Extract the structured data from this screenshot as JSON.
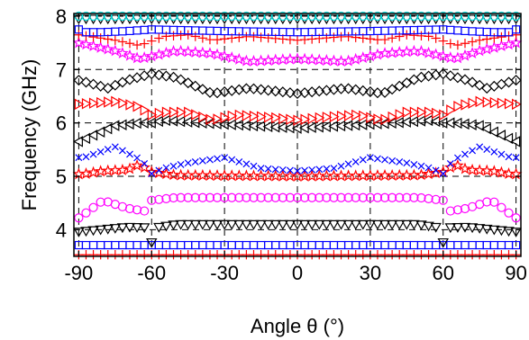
{
  "chart_data": {
    "type": "scatter",
    "xlabel": "Angle θ (°)",
    "ylabel": "Frequency (GHz)",
    "xlim": [
      -92,
      92
    ],
    "ylim": [
      3.5,
      8.05
    ],
    "x_ticks": [
      -90,
      -60,
      -30,
      0,
      30,
      60,
      90
    ],
    "y_ticks": [
      4,
      5,
      6,
      7,
      8
    ],
    "grid": "dashed",
    "legend": "none",
    "marker_step": 3,
    "series": [
      {
        "marker": "plus",
        "color": "#ff0000",
        "symmetric": true,
        "points": [
          [
            0,
            3.53
          ],
          [
            90,
            3.53
          ]
        ]
      },
      {
        "marker": "square",
        "color": "#0000ff",
        "symmetric": true,
        "points": [
          [
            0,
            3.71
          ],
          [
            90,
            3.71
          ]
        ]
      },
      {
        "marker": "triangle-down",
        "color": "#000000",
        "symmetric": true,
        "points": [
          [
            0,
            4.1
          ],
          [
            50,
            4.1
          ],
          [
            58,
            4.04
          ],
          [
            60,
            3.76
          ],
          [
            62,
            4.04
          ],
          [
            70,
            4.05
          ],
          [
            90,
            3.96
          ]
        ]
      },
      {
        "marker": "circle",
        "color": "#ff00ff",
        "symmetric": true,
        "points": [
          [
            0,
            4.6
          ],
          [
            50,
            4.6
          ],
          [
            60,
            4.55
          ],
          [
            63,
            4.35
          ],
          [
            70,
            4.4
          ],
          [
            80,
            4.55
          ],
          [
            88,
            4.28
          ],
          [
            90,
            4.22
          ]
        ]
      },
      {
        "marker": "star",
        "color": "#ff0000",
        "symmetric": true,
        "points": [
          [
            0,
            5.0
          ],
          [
            50,
            5.02
          ],
          [
            60,
            5.08
          ],
          [
            65,
            5.22
          ],
          [
            70,
            5.12
          ],
          [
            80,
            5.1
          ],
          [
            88,
            5.04
          ],
          [
            90,
            5.04
          ]
        ]
      },
      {
        "marker": "x",
        "color": "#0000ff",
        "symmetric": true,
        "points": [
          [
            0,
            5.1
          ],
          [
            15,
            5.15
          ],
          [
            30,
            5.35
          ],
          [
            45,
            5.25
          ],
          [
            55,
            5.15
          ],
          [
            60,
            5.05
          ],
          [
            64,
            5.3
          ],
          [
            75,
            5.55
          ],
          [
            88,
            5.35
          ],
          [
            90,
            5.35
          ]
        ]
      },
      {
        "marker": "triangle-left",
        "color": "#000000",
        "symmetric": true,
        "points": [
          [
            0,
            5.9
          ],
          [
            20,
            5.95
          ],
          [
            40,
            6.0
          ],
          [
            55,
            6.05
          ],
          [
            60,
            6.0
          ],
          [
            65,
            6.0
          ],
          [
            75,
            5.95
          ],
          [
            90,
            5.65
          ]
        ]
      },
      {
        "marker": "triangle-right",
        "color": "#ff0000",
        "symmetric": true,
        "points": [
          [
            0,
            6.05
          ],
          [
            10,
            6.1
          ],
          [
            25,
            6.15
          ],
          [
            35,
            6.05
          ],
          [
            45,
            6.2
          ],
          [
            55,
            6.2
          ],
          [
            60,
            6.15
          ],
          [
            65,
            6.3
          ],
          [
            75,
            6.4
          ],
          [
            90,
            6.35
          ]
        ]
      },
      {
        "marker": "diamond",
        "color": "#000000",
        "symmetric": true,
        "points": [
          [
            0,
            6.55
          ],
          [
            20,
            6.65
          ],
          [
            35,
            6.55
          ],
          [
            50,
            6.85
          ],
          [
            60,
            6.92
          ],
          [
            70,
            6.8
          ],
          [
            78,
            6.65
          ],
          [
            90,
            6.8
          ]
        ]
      },
      {
        "marker": "star",
        "color": "#ff00ff",
        "symmetric": true,
        "points": [
          [
            0,
            7.2
          ],
          [
            20,
            7.15
          ],
          [
            35,
            7.3
          ],
          [
            50,
            7.35
          ],
          [
            65,
            7.2
          ],
          [
            75,
            7.35
          ],
          [
            90,
            7.5
          ]
        ]
      },
      {
        "marker": "plus",
        "color": "#ff0000",
        "symmetric": true,
        "points": [
          [
            0,
            7.55
          ],
          [
            20,
            7.62
          ],
          [
            35,
            7.55
          ],
          [
            45,
            7.65
          ],
          [
            55,
            7.62
          ],
          [
            65,
            7.45
          ],
          [
            75,
            7.55
          ],
          [
            90,
            7.65
          ]
        ]
      },
      {
        "marker": "square",
        "color": "#0000ff",
        "symmetric": true,
        "points": [
          [
            0,
            7.7
          ],
          [
            30,
            7.72
          ],
          [
            60,
            7.75
          ],
          [
            70,
            7.72
          ],
          [
            80,
            7.7
          ],
          [
            88,
            7.7
          ],
          [
            90,
            7.75
          ]
        ]
      },
      {
        "marker": "triangle-down",
        "color": "#000000",
        "symmetric": true,
        "points": [
          [
            0,
            7.95
          ],
          [
            90,
            7.95
          ]
        ]
      },
      {
        "marker": "circle",
        "color": "#00dddd",
        "symmetric": true,
        "points": [
          [
            0,
            8.0
          ],
          [
            90,
            8.0
          ]
        ]
      }
    ]
  }
}
